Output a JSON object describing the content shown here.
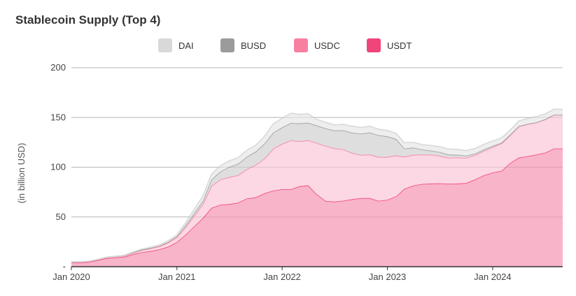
{
  "chart_data": {
    "type": "area",
    "title": "Stablecoin Supply (Top 4)",
    "xlabel": "",
    "ylabel": "(in billion USD)",
    "ylim": [
      0,
      200
    ],
    "yticks": [
      0,
      50,
      100,
      150,
      200
    ],
    "ytick_labels": [
      "-",
      "50",
      "100",
      "150",
      "200"
    ],
    "xlim": [
      "2020-01-01",
      "2024-08-31"
    ],
    "xticks": [
      "2020-01-01",
      "2021-01-01",
      "2022-01-01",
      "2023-01-01",
      "2024-01-01"
    ],
    "xtick_labels": [
      "Jan 2020",
      "Jan 2021",
      "Jan 2022",
      "Jan 2023",
      "Jan 2024"
    ],
    "grid": true,
    "stacked": true,
    "legend_position": "top",
    "x": [
      "2020-01",
      "2020-02",
      "2020-03",
      "2020-04",
      "2020-05",
      "2020-06",
      "2020-07",
      "2020-08",
      "2020-09",
      "2020-10",
      "2020-11",
      "2020-12",
      "2021-01",
      "2021-02",
      "2021-03",
      "2021-04",
      "2021-05",
      "2021-06",
      "2021-07",
      "2021-08",
      "2021-09",
      "2021-10",
      "2021-11",
      "2021-12",
      "2022-01",
      "2022-02",
      "2022-03",
      "2022-04",
      "2022-05",
      "2022-06",
      "2022-07",
      "2022-08",
      "2022-09",
      "2022-10",
      "2022-11",
      "2022-12",
      "2023-01",
      "2023-02",
      "2023-03",
      "2023-04",
      "2023-05",
      "2023-06",
      "2023-07",
      "2023-08",
      "2023-09",
      "2023-10",
      "2023-11",
      "2023-12",
      "2024-01",
      "2024-02",
      "2024-03",
      "2024-04",
      "2024-05",
      "2024-06",
      "2024-07",
      "2024-08"
    ],
    "series": [
      {
        "name": "USDT",
        "color": "#f0457a",
        "values": [
          4.1,
          4.2,
          4.6,
          6.4,
          8.4,
          9.1,
          9.9,
          12.4,
          14.4,
          15.6,
          17.5,
          20.0,
          24.8,
          32.5,
          40.2,
          48.9,
          59.1,
          62.3,
          62.9,
          64.3,
          68.6,
          69.6,
          73.8,
          76.4,
          77.9,
          77.9,
          80.8,
          81.8,
          72.8,
          66.0,
          65.4,
          66.3,
          67.8,
          68.9,
          68.9,
          66.2,
          67.2,
          70.9,
          78.3,
          81.6,
          83.1,
          83.6,
          83.8,
          83.4,
          83.6,
          84.0,
          87.7,
          91.7,
          94.7,
          96.3,
          104.1,
          109.6,
          111.1,
          112.7,
          114.6,
          118.8
        ]
      },
      {
        "name": "USDC",
        "color": "#f77fa0",
        "values": [
          0.5,
          0.5,
          0.6,
          0.7,
          0.8,
          1.0,
          1.1,
          1.5,
          2.2,
          2.8,
          3.0,
          4.0,
          4.8,
          7.6,
          10.6,
          13.9,
          22.0,
          25.4,
          27.1,
          27.6,
          29.4,
          32.7,
          35.0,
          42.1,
          45.6,
          49.1,
          45.2,
          45.3,
          51.5,
          55.4,
          53.6,
          51.6,
          46.5,
          43.4,
          43.9,
          44.1,
          43.1,
          40.8,
          32.3,
          30.8,
          29.5,
          28.9,
          27.7,
          26.1,
          26.2,
          25.3,
          24.4,
          24.6,
          25.5,
          27.5,
          27.8,
          31.4,
          32.1,
          32.3,
          33.4,
          33.8
        ]
      },
      {
        "name": "BUSD",
        "color": "#9b9b9b",
        "values": [
          0.2,
          0.2,
          0.2,
          0.2,
          0.2,
          0.2,
          0.2,
          0.3,
          0.4,
          0.4,
          0.4,
          0.8,
          1.0,
          2.0,
          2.6,
          3.4,
          6.5,
          8.0,
          10.2,
          11.4,
          12.6,
          13.3,
          15.0,
          16.2,
          16.6,
          17.5,
          18.0,
          17.5,
          17.6,
          17.6,
          17.9,
          19.2,
          20.4,
          21.4,
          22.0,
          21.9,
          20.7,
          16.5,
          8.2,
          7.3,
          5.2,
          4.2,
          3.8,
          3.2,
          2.6,
          2.3,
          1.6,
          1.4,
          1.1,
          0.9,
          0.5,
          0.3,
          0.3,
          0.2,
          0.2,
          0.1
        ]
      },
      {
        "name": "DAI",
        "color": "#d9d9d9",
        "values": [
          0.1,
          0.1,
          0.1,
          0.1,
          0.1,
          0.1,
          0.2,
          0.5,
          0.7,
          0.8,
          1.0,
          1.2,
          1.6,
          2.6,
          3.9,
          4.9,
          5.4,
          5.8,
          6.1,
          6.3,
          6.5,
          6.5,
          7.4,
          8.8,
          9.2,
          9.8,
          9.2,
          9.1,
          6.2,
          6.1,
          5.6,
          5.9,
          6.5,
          6.3,
          6.4,
          6.0,
          5.9,
          5.6,
          5.8,
          5.2,
          5.0,
          5.1,
          5.4,
          5.7,
          5.4,
          5.1,
          5.2,
          5.3,
          5.1,
          4.7,
          4.8,
          5.3,
          5.4,
          5.7,
          5.4,
          5.6
        ]
      }
    ]
  }
}
